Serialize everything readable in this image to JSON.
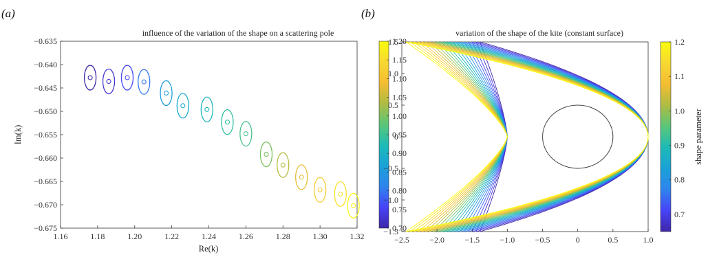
{
  "panels": [
    {
      "label_open": "(",
      "label": "a",
      "label_close": ")"
    },
    {
      "label_open": "(",
      "label": "b",
      "label_close": ")"
    }
  ],
  "chart_data": [
    {
      "type": "scatter",
      "title": "influence of the variation of the shape on a scattering pole",
      "xlabel": "Re(k)",
      "ylabel": "Im(k)",
      "xlim": [
        1.16,
        1.32
      ],
      "ylim": [
        -0.675,
        -0.635
      ],
      "xticks": [
        "1.16",
        "1.18",
        "1.20",
        "1.22",
        "1.24",
        "1.26",
        "1.28",
        "1.30",
        "1.32"
      ],
      "yticks": [
        "−0.635",
        "−0.640",
        "−0.645",
        "−0.650",
        "−0.655",
        "−0.660",
        "−0.665",
        "−0.670",
        "−0.675"
      ],
      "grid": false,
      "colorbar": {
        "label": "",
        "range": [
          0.7,
          1.2
        ],
        "ticks": [
          "1.20",
          "1.15",
          "1.10",
          "1.05",
          "1.00",
          "0.95",
          "0.90",
          "0.85",
          "0.80",
          "0.75",
          "0.70"
        ]
      },
      "points": [
        {
          "re": 1.176,
          "im": -0.6428,
          "shape": 0.7
        },
        {
          "re": 1.186,
          "im": -0.6436,
          "shape": 0.73
        },
        {
          "re": 1.196,
          "im": -0.6428,
          "shape": 0.76
        },
        {
          "re": 1.205,
          "im": -0.6437,
          "shape": 0.8
        },
        {
          "re": 1.217,
          "im": -0.6461,
          "shape": 0.86
        },
        {
          "re": 1.226,
          "im": -0.6488,
          "shape": 0.89
        },
        {
          "re": 1.239,
          "im": -0.6496,
          "shape": 0.91
        },
        {
          "re": 1.25,
          "im": -0.6523,
          "shape": 0.94
        },
        {
          "re": 1.26,
          "im": -0.6548,
          "shape": 0.96
        },
        {
          "re": 1.271,
          "im": -0.6592,
          "shape": 1.0
        },
        {
          "re": 1.28,
          "im": -0.6615,
          "shape": 1.04
        },
        {
          "re": 1.29,
          "im": -0.6641,
          "shape": 1.08
        },
        {
          "re": 1.3,
          "im": -0.6668,
          "shape": 1.12
        },
        {
          "re": 1.311,
          "im": -0.6677,
          "shape": 1.16
        },
        {
          "re": 1.318,
          "im": -0.6702,
          "shape": 1.19
        }
      ]
    },
    {
      "type": "line",
      "title": "variation of the shape of the kite (constant surface)",
      "xlabel": "",
      "ylabel": "",
      "xlim": [
        -2.5,
        1.0
      ],
      "ylim": [
        -1.5,
        1.5
      ],
      "xticks": [
        "−2.5",
        "−2.0",
        "−1.5",
        "−1.0",
        "−0.5",
        "0",
        "0.5",
        "1.0"
      ],
      "yticks": [
        "1.5",
        "1.0",
        "0.5",
        "0",
        "−0.5",
        "−1.0",
        "−1.5"
      ],
      "grid": false,
      "colorbar": {
        "label": "shape parameter",
        "range": [
          0.65,
          1.2
        ],
        "ticks": [
          "1.2",
          "1.1",
          "1.0",
          "0.9",
          "0.8",
          "0.7"
        ]
      },
      "circle": {
        "cx": 0.0,
        "cy": 0.0,
        "r": 0.5
      },
      "curves": {
        "count": 20,
        "shape_min": 0.65,
        "shape_max": 1.2
      }
    }
  ],
  "colors": {
    "colormap": [
      "#3e26a8",
      "#4743f8",
      "#2e84ed",
      "#1aa1d8",
      "#1dbbb6",
      "#5bc679",
      "#aebc43",
      "#f4bd32",
      "#f7d832",
      "#f9fb0e"
    ],
    "circle": "#444444",
    "axis": "#333333"
  }
}
